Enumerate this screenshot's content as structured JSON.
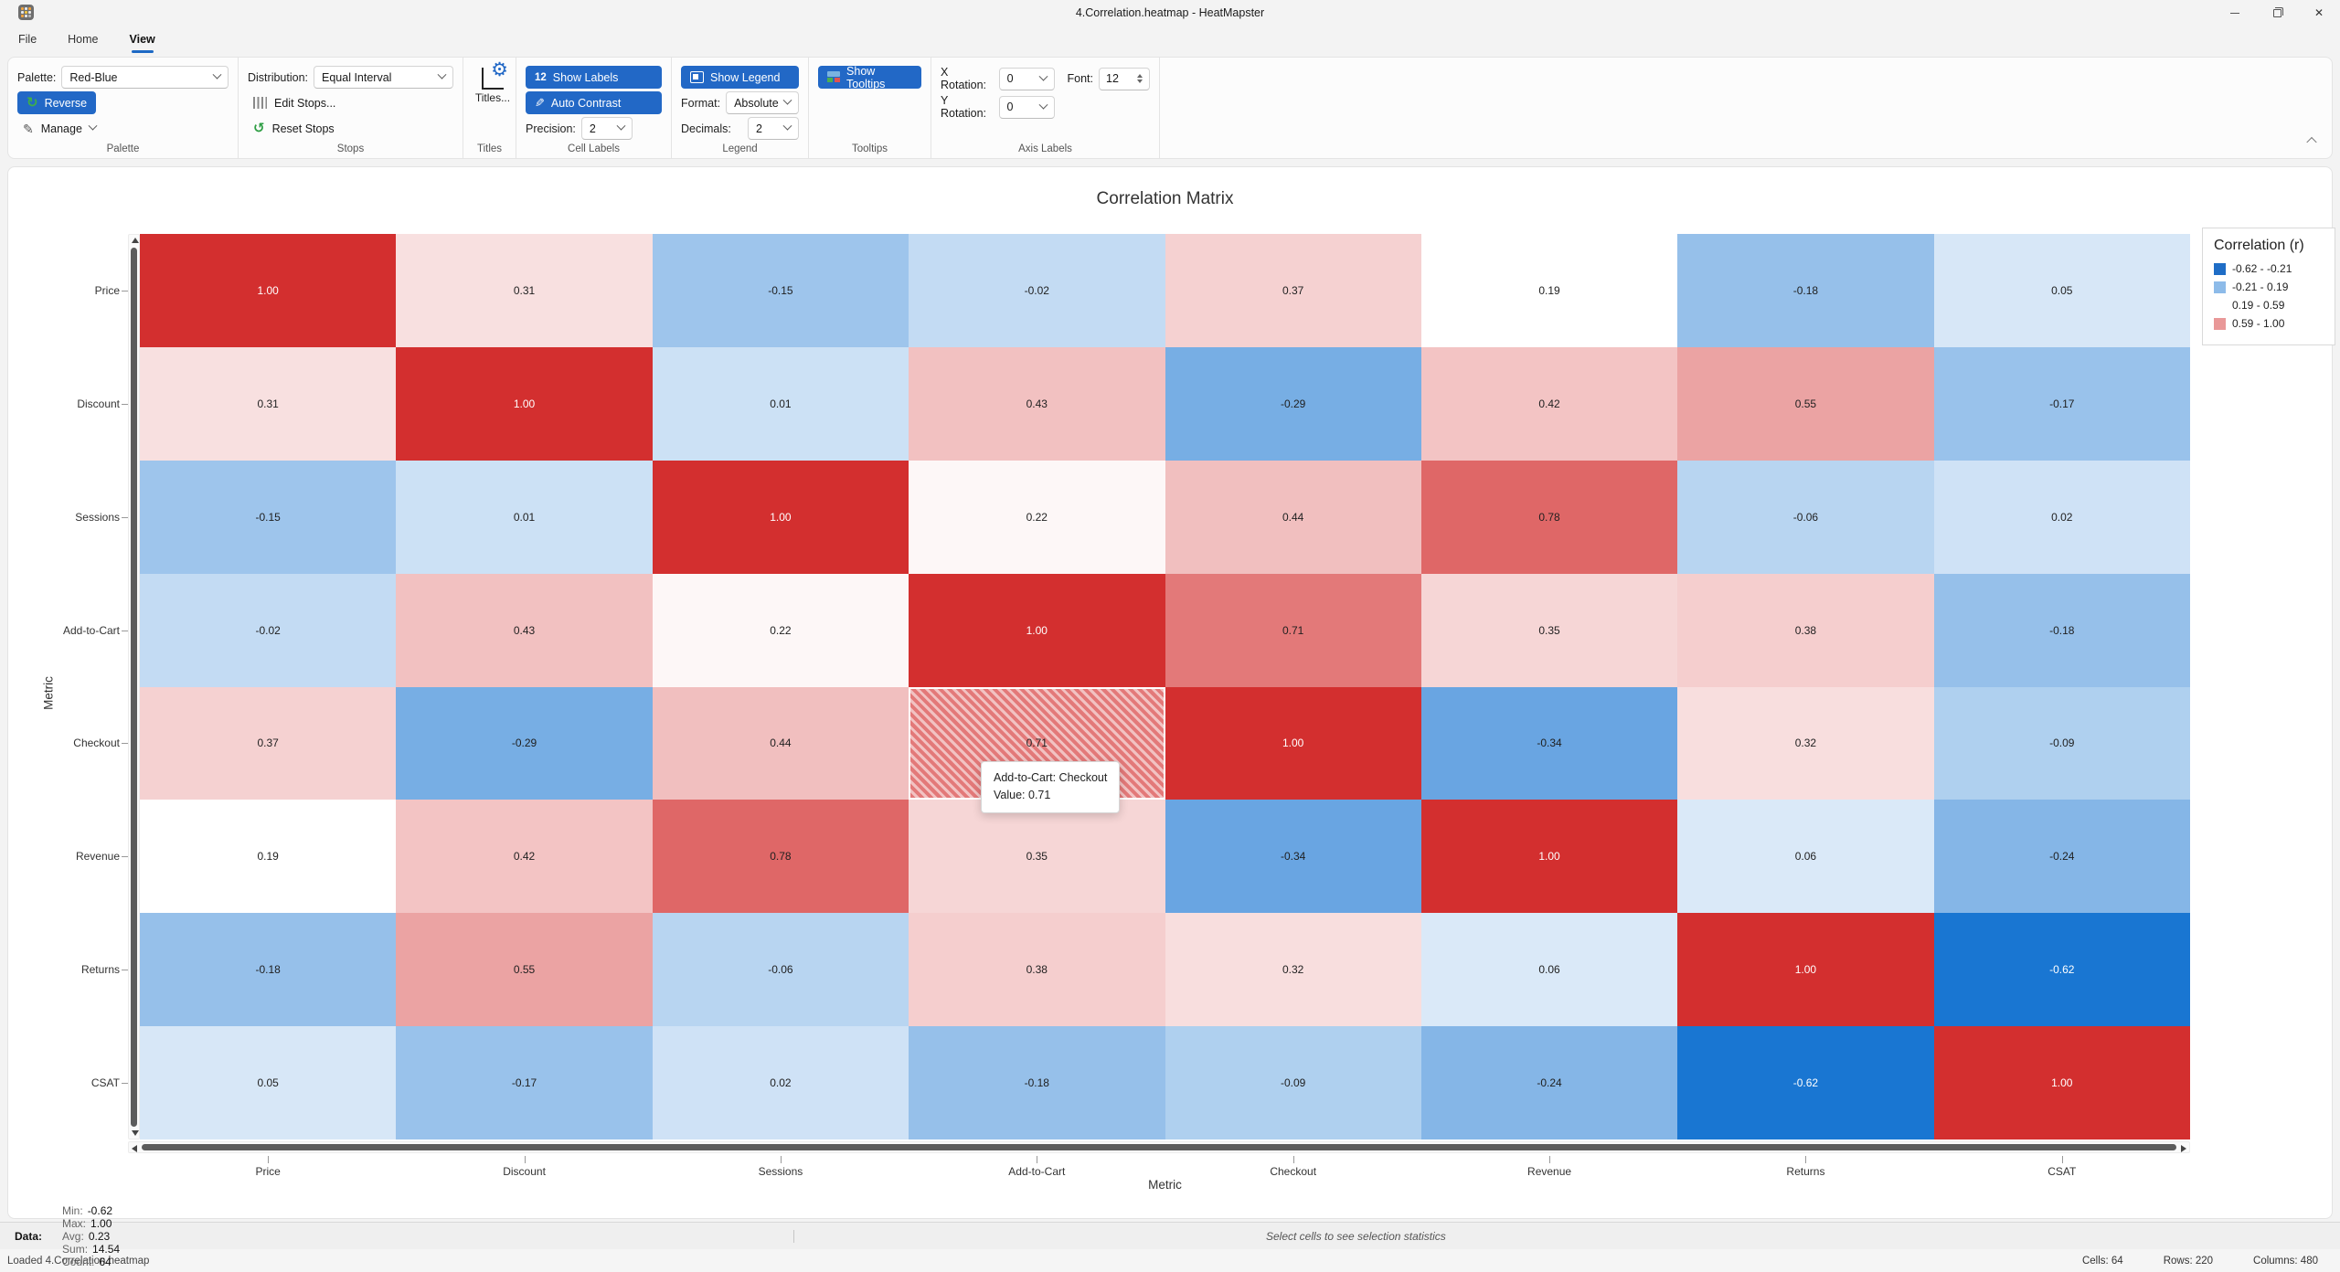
{
  "window": {
    "title": "4.Correlation.heatmap - HeatMapster"
  },
  "menu": {
    "tabs": [
      {
        "label": "File"
      },
      {
        "label": "Home"
      },
      {
        "label": "View"
      }
    ],
    "active": "View"
  },
  "ribbon": {
    "palette": {
      "group": "Palette",
      "field": "Palette:",
      "value": "Red-Blue",
      "reverse": "Reverse",
      "manage": "Manage"
    },
    "stops": {
      "group": "Stops",
      "field": "Distribution:",
      "value": "Equal Interval",
      "edit": "Edit Stops...",
      "reset": "Reset Stops"
    },
    "titles": {
      "group": "Titles",
      "button": "Titles..."
    },
    "cells": {
      "group": "Cell Labels",
      "badge": "12",
      "show": "Show Labels",
      "auto": "Auto Contrast",
      "precision_label": "Precision:",
      "precision": "2"
    },
    "legend": {
      "group": "Legend",
      "show": "Show Legend",
      "format_label": "Format:",
      "format": "Absolute",
      "decimals_label": "Decimals:",
      "decimals": "2"
    },
    "tooltips": {
      "group": "Tooltips",
      "show": "Show Tooltips"
    },
    "axis": {
      "group": "Axis Labels",
      "x_label": "X Rotation:",
      "x_value": "0",
      "y_label": "Y Rotation:",
      "y_value": "0",
      "font_label": "Font:",
      "font_value": "12"
    }
  },
  "chart_data": {
    "type": "heatmap",
    "title": "Correlation Matrix",
    "xlabel": "Metric",
    "ylabel": "Metric",
    "categories": [
      "Price",
      "Discount",
      "Sessions",
      "Add-to-Cart",
      "Checkout",
      "Revenue",
      "Returns",
      "CSAT"
    ],
    "matrix": [
      [
        1.0,
        0.31,
        -0.15,
        -0.02,
        0.37,
        0.19,
        -0.18,
        0.05
      ],
      [
        0.31,
        1.0,
        0.01,
        0.43,
        -0.29,
        0.42,
        0.55,
        -0.17
      ],
      [
        -0.15,
        0.01,
        1.0,
        0.22,
        0.44,
        0.78,
        -0.06,
        0.02
      ],
      [
        -0.02,
        0.43,
        0.22,
        1.0,
        0.71,
        0.35,
        0.38,
        -0.18
      ],
      [
        0.37,
        -0.29,
        0.44,
        0.71,
        1.0,
        -0.34,
        0.32,
        -0.09
      ],
      [
        0.19,
        0.42,
        0.78,
        0.35,
        -0.34,
        1.0,
        0.06,
        -0.24
      ],
      [
        -0.18,
        0.55,
        -0.06,
        0.38,
        0.32,
        0.06,
        1.0,
        -0.62
      ],
      [
        0.05,
        -0.17,
        0.02,
        -0.18,
        -0.09,
        -0.24,
        -0.62,
        1.0
      ]
    ],
    "value_format_decimals": 2,
    "color_scale": {
      "min": -0.62,
      "mid": 0.19,
      "max": 1.0,
      "min_color": "#1976d2",
      "mid_color": "#ffffff",
      "max_color": "#d32f2f"
    },
    "legend": {
      "title": "Correlation (r)",
      "items": [
        {
          "label": "-0.62 - -0.21",
          "color": "#1f6dc6"
        },
        {
          "label": "-0.21 - 0.19",
          "color": "#8dbbe9"
        },
        {
          "label": "0.19 - 0.59",
          "color": "#ffffff"
        },
        {
          "label": "0.59 - 1.00",
          "color": "#e99898"
        }
      ]
    },
    "hover": {
      "row": 4,
      "col": 3,
      "tooltip_line1": "Add-to-Cart: Checkout",
      "tooltip_line2": "Value: 0.71"
    }
  },
  "statusbar": {
    "data_label": "Data:",
    "stats": [
      {
        "k": "Min:",
        "v": "-0.62"
      },
      {
        "k": "Max:",
        "v": "1.00"
      },
      {
        "k": "Avg:",
        "v": "0.23"
      },
      {
        "k": "Sum:",
        "v": "14.54"
      },
      {
        "k": "Count:",
        "v": "64"
      }
    ],
    "hint": "Select cells to see selection statistics",
    "loaded": "Loaded 4.Correlation.heatmap",
    "right": [
      {
        "k": "Cells:",
        "v": "64"
      },
      {
        "k": "Rows:",
        "v": "220"
      },
      {
        "k": "Columns:",
        "v": "480"
      }
    ]
  }
}
